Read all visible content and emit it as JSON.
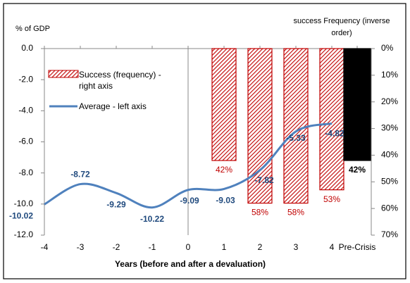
{
  "chart_data": {
    "type": "combo",
    "y_label": "% of GDP",
    "y2_label": "success Frequency (inverse order)",
    "x_label": "Years (before and after a devaluation)",
    "categories": [
      "-4",
      "-3",
      "-2",
      "-1",
      "0",
      "1",
      "2",
      "3",
      "4",
      "Pre-Crisis"
    ],
    "series": [
      {
        "name": "Success (frequency) - right axis",
        "type": "bar",
        "axis": "y2",
        "color": "#c00000",
        "values": [
          null,
          null,
          null,
          null,
          null,
          42,
          58,
          58,
          53,
          42
        ],
        "value_labels": [
          null,
          null,
          null,
          null,
          null,
          "42%",
          "58%",
          "58%",
          "53%",
          "42%"
        ],
        "bar_colors": [
          null,
          null,
          null,
          null,
          null,
          "#c00000",
          "#c00000",
          "#c00000",
          "#c00000",
          "#000000"
        ],
        "bar_styles": [
          null,
          null,
          null,
          null,
          null,
          "hatched",
          "hatched",
          "hatched",
          "hatched",
          "solid"
        ]
      },
      {
        "name": "Average - left axis",
        "type": "line",
        "axis": "y",
        "color": "#4f81bd",
        "values": [
          -10.02,
          -8.72,
          -9.29,
          -10.22,
          -9.09,
          -9.03,
          -7.82,
          -5.33,
          -4.82,
          null
        ]
      }
    ],
    "ylim": [
      -12,
      0
    ],
    "yticks": [
      {
        "value": 0,
        "label": "0.0"
      },
      {
        "value": -2,
        "label": "-2.0"
      },
      {
        "value": -4,
        "label": "-4.0"
      },
      {
        "value": -6,
        "label": "-6.0"
      },
      {
        "value": -8,
        "label": "-8.0"
      },
      {
        "value": -10,
        "label": "-10.0"
      },
      {
        "value": -12,
        "label": "-12.0"
      }
    ],
    "y2lim": [
      0,
      70
    ],
    "y2_inverted": true,
    "y2ticks": [
      {
        "value": 0,
        "label": "0%"
      },
      {
        "value": 10,
        "label": "10%"
      },
      {
        "value": 20,
        "label": "20%"
      },
      {
        "value": 30,
        "label": "30%"
      },
      {
        "value": 40,
        "label": "40%"
      },
      {
        "value": 50,
        "label": "50%"
      },
      {
        "value": 60,
        "label": "60%"
      },
      {
        "value": 70,
        "label": "70%"
      }
    ]
  }
}
